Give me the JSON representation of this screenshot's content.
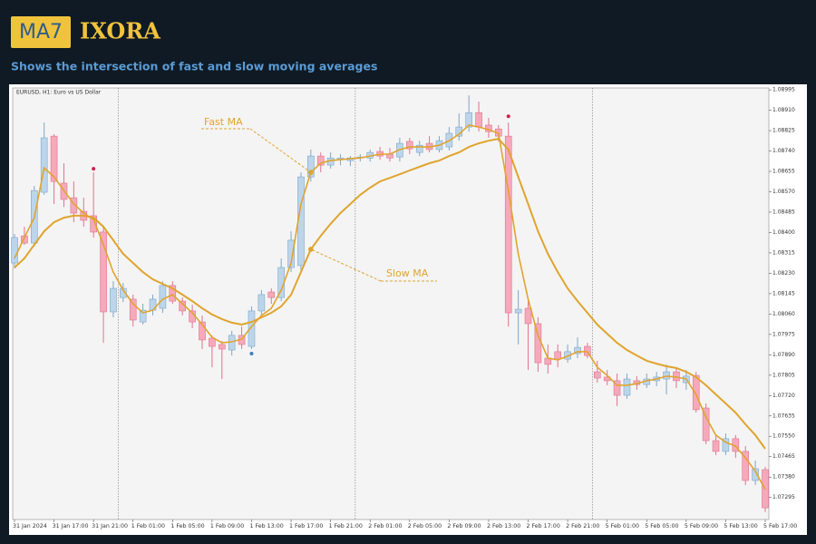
{
  "header": {
    "logo_badge": "MA7",
    "logo_name": "IXORA",
    "subtitle": "Shows the intersection of fast and slow moving averages"
  },
  "chart_data": {
    "type": "candlestick",
    "title": "EURUSD, H1: Euro vs US Dollar",
    "categories": [
      "31 Jan 2024",
      null,
      null,
      null,
      "31 Jan 17:00",
      null,
      null,
      null,
      "31 Jan 21:00",
      null,
      null,
      null,
      "1 Feb 01:00",
      null,
      null,
      null,
      "1 Feb 05:00",
      null,
      null,
      null,
      "1 Feb 09:00",
      null,
      null,
      null,
      "1 Feb 13:00",
      null,
      null,
      null,
      "1 Feb 17:00",
      null,
      null,
      null,
      "1 Feb 21:00",
      null,
      null,
      null,
      "2 Feb 01:00",
      null,
      null,
      null,
      "2 Feb 05:00",
      null,
      null,
      null,
      "2 Feb 09:00",
      null,
      null,
      null,
      "2 Feb 13:00",
      null,
      null,
      null,
      "2 Feb 17:00",
      null,
      null,
      null,
      "2 Feb 21:00",
      null,
      null,
      null,
      "5 Feb 01:00",
      null,
      null,
      null,
      "5 Feb 05:00",
      null,
      null,
      null,
      "5 Feb 09:00",
      null,
      null,
      null,
      "5 Feb 13:00",
      null,
      null,
      null,
      "5 Feb 17:00"
    ],
    "open": [
      1.08273,
      1.08386,
      1.08356,
      1.08568,
      1.08802,
      1.08606,
      1.08545,
      1.08488,
      1.0847,
      1.08402,
      1.08069,
      1.08129,
      1.08122,
      1.08027,
      1.08076,
      1.08084,
      1.08179,
      1.08114,
      1.08073,
      1.08027,
      1.07959,
      1.07933,
      1.0791,
      1.07971,
      1.07925,
      1.08073,
      1.08152,
      1.08129,
      1.08254,
      1.08262,
      1.08632,
      1.08719,
      1.08681,
      1.08704,
      1.087,
      1.08715,
      1.08711,
      1.08738,
      1.08727,
      1.08715,
      1.0878,
      1.08734,
      1.08772,
      1.08746,
      1.08757,
      1.08802,
      1.0884,
      1.089,
      1.08848,
      1.08832,
      1.08802,
      1.08065,
      1.08084,
      1.0802,
      1.07876,
      1.07903,
      1.07872,
      1.07895,
      1.07925,
      1.07819,
      1.07797,
      1.07782,
      1.07721,
      1.07782,
      1.07766,
      1.07782,
      1.07789,
      1.07819,
      1.07774,
      1.07804,
      1.07668,
      1.07532,
      1.07487,
      1.0754,
      1.07487,
      1.07366,
      1.07411
    ],
    "high": [
      1.08394,
      1.08424,
      1.08594,
      1.08859,
      1.0881,
      1.08689,
      1.08613,
      1.08545,
      1.08651,
      1.08424,
      1.08197,
      1.0819,
      1.08141,
      1.08103,
      1.08141,
      1.08197,
      1.08197,
      1.08129,
      1.08099,
      1.08054,
      1.07971,
      1.07948,
      1.0799,
      1.08008,
      1.08092,
      1.0816,
      1.08167,
      1.08292,
      1.08405,
      1.08651,
      1.08746,
      1.08734,
      1.08734,
      1.08727,
      1.08719,
      1.08727,
      1.08746,
      1.08757,
      1.08753,
      1.08795,
      1.08795,
      1.08783,
      1.08802,
      1.08802,
      1.0884,
      1.08897,
      1.08972,
      1.08946,
      1.08878,
      1.08848,
      1.08859,
      1.0816,
      1.08122,
      1.08046,
      1.07933,
      1.07933,
      1.07933,
      1.07963,
      1.0794,
      1.07865,
      1.07827,
      1.07812,
      1.07812,
      1.07801,
      1.07812,
      1.07819,
      1.0785,
      1.07838,
      1.07827,
      1.07819,
      1.07687,
      1.07555,
      1.07562,
      1.07555,
      1.07509,
      1.07449,
      1.07423
    ],
    "low": [
      1.0825,
      1.08349,
      1.08341,
      1.08557,
      1.08519,
      1.08507,
      1.08443,
      1.08424,
      1.08379,
      1.0794,
      1.08046,
      1.0811,
      1.08008,
      1.08016,
      1.08054,
      1.08065,
      1.08103,
      1.08054,
      1.08001,
      1.07914,
      1.07838,
      1.07789,
      1.07887,
      1.07914,
      1.07914,
      1.08046,
      1.08103,
      1.08114,
      1.08235,
      1.08243,
      1.08613,
      1.08651,
      1.08666,
      1.08681,
      1.08677,
      1.08696,
      1.08696,
      1.08704,
      1.08696,
      1.08696,
      1.08727,
      1.08719,
      1.08734,
      1.08734,
      1.08742,
      1.08783,
      1.08821,
      1.08821,
      1.08795,
      1.0878,
      1.08008,
      1.07933,
      1.07827,
      1.07819,
      1.07812,
      1.07838,
      1.07857,
      1.07876,
      1.07876,
      1.07774,
      1.07763,
      1.07676,
      1.07706,
      1.07744,
      1.07751,
      1.07759,
      1.07725,
      1.07751,
      1.07744,
      1.07649,
      1.07517,
      1.07472,
      1.07472,
      1.0746,
      1.07347,
      1.07347,
      1.07234
    ],
    "close": [
      1.08379,
      1.08356,
      1.08575,
      1.08795,
      1.08613,
      1.08538,
      1.08481,
      1.08451,
      1.08402,
      1.08069,
      1.08167,
      1.08167,
      1.08035,
      1.08076,
      1.08122,
      1.08179,
      1.08114,
      1.08073,
      1.08027,
      1.07952,
      1.07925,
      1.07914,
      1.07971,
      1.07933,
      1.08073,
      1.08141,
      1.08129,
      1.08254,
      1.08368,
      1.08632,
      1.08719,
      1.08681,
      1.08711,
      1.08711,
      1.08711,
      1.08715,
      1.08734,
      1.08719,
      1.08711,
      1.08772,
      1.08749,
      1.08764,
      1.08746,
      1.08783,
      1.08814,
      1.0884,
      1.089,
      1.0884,
      1.08821,
      1.08802,
      1.08065,
      1.0808,
      1.0802,
      1.07857,
      1.0785,
      1.07872,
      1.07903,
      1.07921,
      1.07887,
      1.07793,
      1.07782,
      1.07721,
      1.07789,
      1.07766,
      1.07789,
      1.07797,
      1.07819,
      1.07782,
      1.07801,
      1.07661,
      1.07532,
      1.07487,
      1.0754,
      1.07487,
      1.07366,
      1.07415,
      1.07252
    ],
    "up_color": "#bcd5ea",
    "up_edge": "#7ea6c8",
    "down_color": "#f5a9bb",
    "down_edge": "#e0728d",
    "series": [
      {
        "name": "Fast MA",
        "color": "#e0a42e",
        "values": [
          1.08292,
          1.08379,
          1.08462,
          1.0867,
          1.08632,
          1.08575,
          1.08519,
          1.08481,
          1.08454,
          1.08349,
          1.08235,
          1.0816,
          1.08103,
          1.08065,
          1.08076,
          1.08122,
          1.08141,
          1.08103,
          1.08065,
          1.08016,
          1.07963,
          1.0794,
          1.07944,
          1.07955,
          1.08008,
          1.08054,
          1.08084,
          1.0816,
          1.08273,
          1.08519,
          1.08651,
          1.08689,
          1.087,
          1.08704,
          1.08708,
          1.08711,
          1.08719,
          1.08727,
          1.08727,
          1.08746,
          1.08757,
          1.08757,
          1.08757,
          1.08764,
          1.08783,
          1.0881,
          1.08848,
          1.0884,
          1.08829,
          1.08814,
          1.08575,
          1.08311,
          1.08122,
          1.07971,
          1.07876,
          1.07869,
          1.07884,
          1.07903,
          1.07903,
          1.07838,
          1.07804,
          1.07763,
          1.07763,
          1.0777,
          1.07782,
          1.07789,
          1.07801,
          1.07797,
          1.07789,
          1.07725,
          1.0763,
          1.07555,
          1.07525,
          1.07509,
          1.0746,
          1.07404,
          1.07328
        ]
      },
      {
        "name": "Slow MA",
        "color": "#e0a42e",
        "values": [
          1.08254,
          1.08292,
          1.08349,
          1.08405,
          1.08443,
          1.08462,
          1.0847,
          1.0847,
          1.08462,
          1.08424,
          1.08368,
          1.08311,
          1.08273,
          1.08235,
          1.08205,
          1.08186,
          1.08167,
          1.08141,
          1.08114,
          1.08084,
          1.08058,
          1.08039,
          1.08024,
          1.08016,
          1.08027,
          1.08046,
          1.08065,
          1.08092,
          1.08141,
          1.08235,
          1.0833,
          1.08386,
          1.08436,
          1.08481,
          1.08519,
          1.08557,
          1.08587,
          1.08613,
          1.08628,
          1.08643,
          1.08659,
          1.08674,
          1.08689,
          1.087,
          1.08719,
          1.08734,
          1.08757,
          1.08772,
          1.08783,
          1.08791,
          1.08746,
          1.08632,
          1.08519,
          1.08405,
          1.08311,
          1.08235,
          1.08167,
          1.08114,
          1.08065,
          1.08016,
          1.07978,
          1.0794,
          1.0791,
          1.07887,
          1.07865,
          1.07853,
          1.07842,
          1.07835,
          1.07819,
          1.07797,
          1.07763,
          1.07725,
          1.07687,
          1.07649,
          1.076,
          1.07555,
          1.07498
        ]
      }
    ],
    "markers": [
      {
        "x": 8,
        "value": 1.08666,
        "color": "#d0204a"
      },
      {
        "x": 50,
        "value": 1.08885,
        "color": "#d0204a"
      },
      {
        "x": 24,
        "value": 1.07895,
        "color": "#3a7fc0"
      }
    ],
    "separators": [
      11,
      35,
      59
    ],
    "ylim": [
      1.07203,
      1.09003
    ],
    "yticks": [
      1.08995,
      {
        "value": 1.0891,
        "label": "1.08910"
      },
      1.08825,
      {
        "value": 1.0874,
        "label": "1.08740"
      },
      1.08655,
      {
        "value": 1.0857,
        "label": "1.08570"
      },
      1.08485,
      {
        "value": 1.084,
        "label": "1.08400"
      },
      1.08315,
      {
        "value": 1.0823,
        "label": "1.08230"
      },
      1.08145,
      {
        "value": 1.0806,
        "label": "1.08060"
      },
      1.07975,
      {
        "value": 1.0789,
        "label": "1.07890"
      },
      1.07805,
      {
        "value": 1.0772,
        "label": "1.07720"
      },
      1.07635,
      {
        "value": 1.0755,
        "label": "1.07550"
      },
      1.07465,
      {
        "value": 1.0738,
        "label": "1.07380"
      },
      1.07295
    ]
  }
}
